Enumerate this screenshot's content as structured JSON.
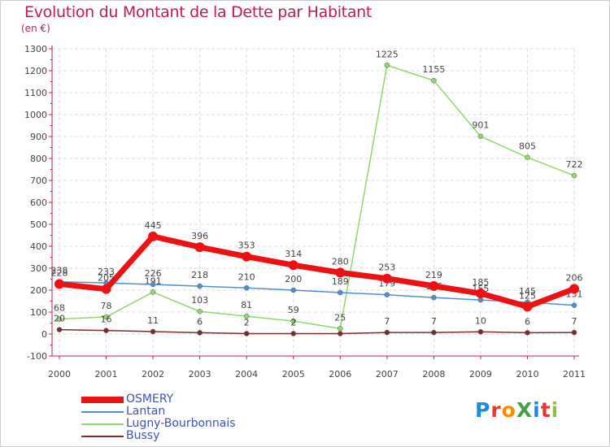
{
  "title": "Evolution du Montant de la Dette par Habitant",
  "subtitle": "(en €)",
  "logo": {
    "text": "ProXiti",
    "letters": [
      {
        "c": "P",
        "color": "#1e88e5"
      },
      {
        "c": "r",
        "color": "#e53935"
      },
      {
        "c": "o",
        "color": "#fb8c00"
      },
      {
        "c": "X",
        "color": "#43a047"
      },
      {
        "c": "i",
        "color": "#1e88e5"
      },
      {
        "c": "t",
        "color": "#e53935"
      },
      {
        "c": "i",
        "color": "#8bc34a"
      }
    ]
  },
  "chart_data": {
    "type": "line",
    "x": [
      "2000",
      "2001",
      "2002",
      "2003",
      "2004",
      "2005",
      "2006",
      "2007",
      "2008",
      "2009",
      "2010",
      "2011"
    ],
    "ylim": [
      -100,
      1300
    ],
    "yticks": [
      -100,
      0,
      100,
      200,
      300,
      400,
      500,
      600,
      700,
      800,
      900,
      1000,
      1100,
      1200,
      1300
    ],
    "grid": true,
    "legend_position": "bottom-left",
    "series": [
      {
        "name": "Lugny-Bourbonnais",
        "color": "#8fd86a",
        "values": [
          68,
          78,
          191,
          103,
          81,
          59,
          25,
          1225,
          1155,
          901,
          805,
          722
        ],
        "labels": [
          "68",
          "78",
          "191",
          "103",
          "81",
          "59",
          "25",
          "1225",
          "1155",
          "901",
          "805",
          "722"
        ]
      },
      {
        "name": "Bussy",
        "color": "#7b2c2c",
        "values": [
          20,
          16,
          11,
          6,
          2,
          2,
          2,
          7,
          7,
          10,
          6,
          7
        ],
        "labels": [
          "20",
          "16",
          "11",
          "6",
          "2",
          "2",
          "",
          "7",
          "7",
          "10",
          "6",
          "7"
        ]
      },
      {
        "name": "Lantan",
        "color": "#4a90d9",
        "values": [
          238,
          233,
          226,
          218,
          210,
          200,
          189,
          179,
          166,
          155,
          145,
          131
        ],
        "labels": [
          "238",
          "233",
          "226",
          "218",
          "210",
          "200",
          "189",
          "179",
          "166",
          "155",
          "145",
          "131"
        ]
      },
      {
        "name": "OSMERY",
        "color": "#ee1111",
        "values": [
          228,
          205,
          445,
          396,
          353,
          314,
          280,
          253,
          219,
          185,
          125,
          206
        ],
        "labels": [
          "228",
          "205",
          "445",
          "396",
          "353",
          "314",
          "280",
          "253",
          "219",
          "185",
          "125",
          "206"
        ]
      }
    ]
  }
}
